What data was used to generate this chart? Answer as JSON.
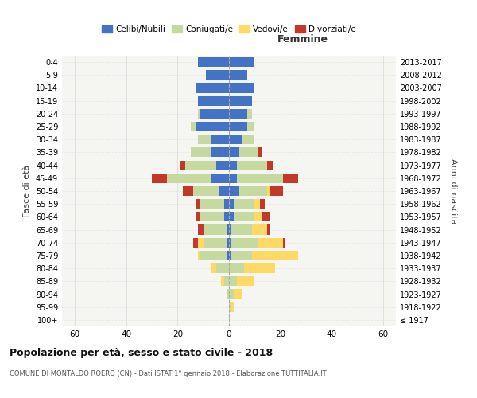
{
  "age_groups": [
    "100+",
    "95-99",
    "90-94",
    "85-89",
    "80-84",
    "75-79",
    "70-74",
    "65-69",
    "60-64",
    "55-59",
    "50-54",
    "45-49",
    "40-44",
    "35-39",
    "30-34",
    "25-29",
    "20-24",
    "15-19",
    "10-14",
    "5-9",
    "0-4"
  ],
  "birth_years": [
    "≤ 1917",
    "1918-1922",
    "1923-1927",
    "1928-1932",
    "1933-1937",
    "1938-1942",
    "1943-1947",
    "1948-1952",
    "1953-1957",
    "1958-1962",
    "1963-1967",
    "1968-1972",
    "1973-1977",
    "1978-1982",
    "1983-1987",
    "1988-1992",
    "1993-1997",
    "1998-2002",
    "2003-2007",
    "2008-2012",
    "2013-2017"
  ],
  "male": {
    "celibi": [
      0,
      0,
      0,
      0,
      0,
      1,
      1,
      1,
      2,
      2,
      4,
      7,
      5,
      7,
      7,
      13,
      11,
      12,
      13,
      9,
      12
    ],
    "coniugati": [
      0,
      0,
      1,
      2,
      5,
      10,
      9,
      9,
      9,
      9,
      10,
      17,
      12,
      8,
      5,
      2,
      1,
      0,
      0,
      0,
      0
    ],
    "vedovi": [
      0,
      0,
      0,
      1,
      2,
      1,
      2,
      0,
      0,
      0,
      0,
      0,
      0,
      0,
      0,
      0,
      0,
      0,
      0,
      0,
      0
    ],
    "divorziati": [
      0,
      0,
      0,
      0,
      0,
      0,
      2,
      2,
      2,
      2,
      4,
      6,
      2,
      0,
      0,
      0,
      0,
      0,
      0,
      0,
      0
    ]
  },
  "female": {
    "nubili": [
      0,
      0,
      0,
      0,
      0,
      1,
      1,
      1,
      2,
      2,
      4,
      3,
      3,
      4,
      5,
      7,
      7,
      9,
      10,
      7,
      10
    ],
    "coniugate": [
      0,
      1,
      2,
      3,
      6,
      8,
      10,
      8,
      8,
      8,
      11,
      18,
      12,
      7,
      5,
      3,
      2,
      0,
      0,
      0,
      0
    ],
    "vedove": [
      0,
      1,
      3,
      7,
      12,
      18,
      10,
      6,
      3,
      2,
      1,
      0,
      0,
      0,
      0,
      0,
      0,
      0,
      0,
      0,
      0
    ],
    "divorziate": [
      0,
      0,
      0,
      0,
      0,
      0,
      1,
      1,
      3,
      2,
      5,
      6,
      2,
      2,
      0,
      0,
      0,
      0,
      0,
      0,
      0
    ]
  },
  "colors": {
    "celibi_nubili": "#4472C4",
    "coniugati": "#C5D9A0",
    "vedovi": "#FFD966",
    "divorziati": "#C0392B"
  },
  "title": "Popolazione per età, sesso e stato civile - 2018",
  "subtitle": "COMUNE DI MONTALDO ROERO (CN) - Dati ISTAT 1° gennaio 2018 - Elaborazione TUTTITALIA.IT",
  "ylabel_left": "Fasce di età",
  "ylabel_right": "Anni di nascita",
  "xlabel_right": "Femmine",
  "xlim": 65,
  "background_color": "#FFFFFF",
  "plot_bg": "#F5F5F2",
  "grid_color": "#CCCCCC"
}
